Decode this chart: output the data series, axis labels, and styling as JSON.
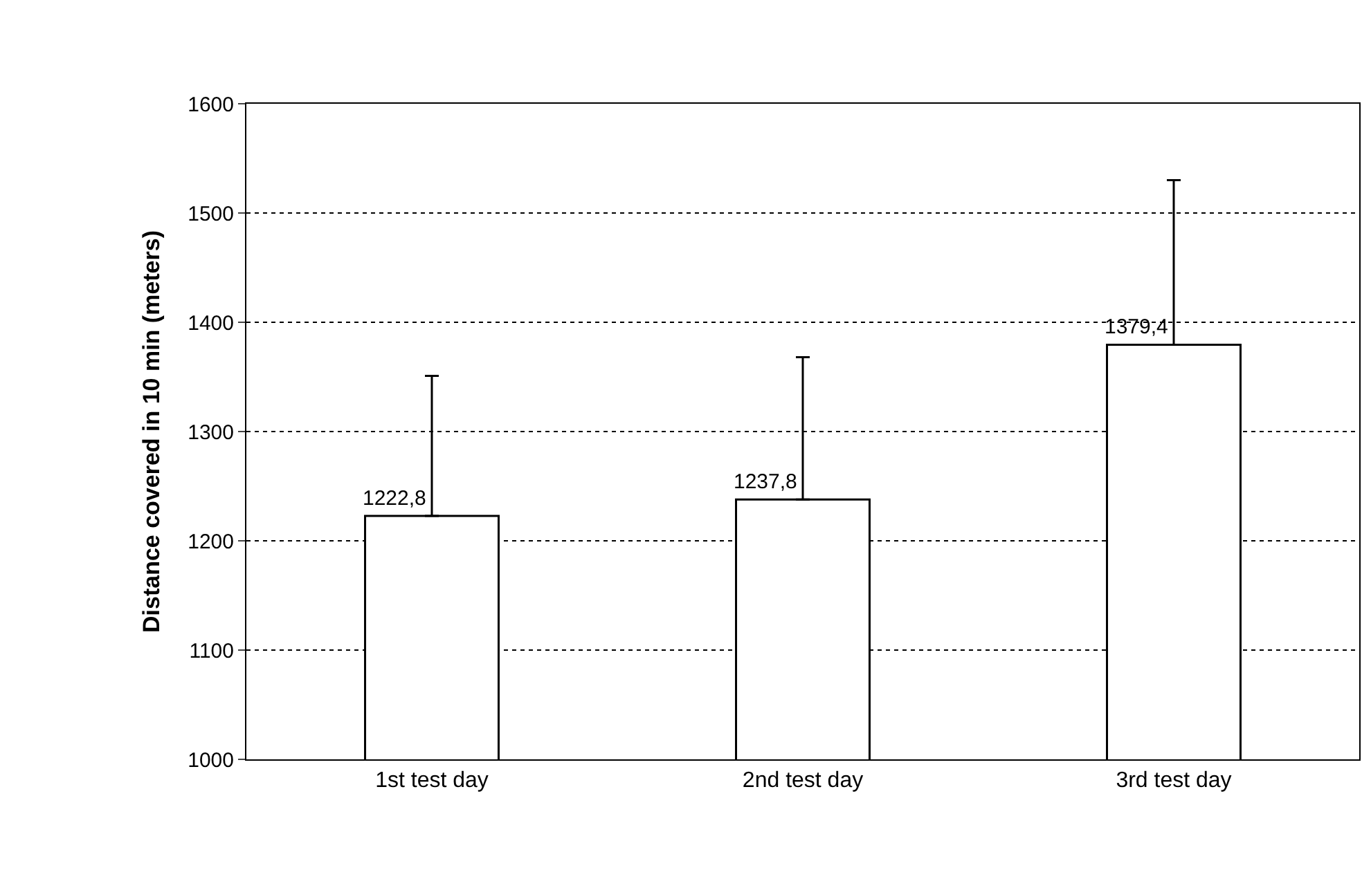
{
  "chart_data": {
    "type": "bar",
    "ylabel": "Distance covered in 10 min (meters)",
    "categories": [
      "1st test day",
      "2nd test day",
      "3rd test day"
    ],
    "values": [
      1222.8,
      1237.8,
      1379.4
    ],
    "value_labels": [
      "1222,8",
      "1237,8",
      "1379,4"
    ],
    "errors": [
      [
        1222.8,
        1351
      ],
      [
        1237.8,
        1368
      ],
      [
        1379.4,
        1530
      ]
    ],
    "color": "#ffffff",
    "ylim": [
      1000,
      1600
    ],
    "yticks": [
      1000,
      1100,
      1200,
      1300,
      1400,
      1500,
      1600
    ],
    "grid": "y",
    "legend": false
  }
}
